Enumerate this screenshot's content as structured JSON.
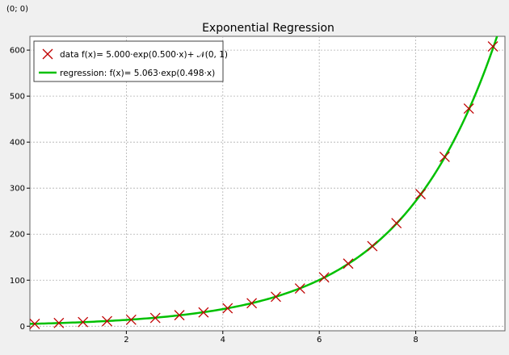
{
  "status": {
    "coordinate_readout": "(0; 0)"
  },
  "colors": {
    "background": "#f0f0f0",
    "plot_background": "#ffffff",
    "data_marker": "#c00000",
    "regression_line": "#00c000",
    "grid": "#b0b0b0"
  },
  "chart_data": {
    "type": "scatter",
    "title": "Exponential Regression",
    "xlabel": "",
    "ylabel": "",
    "xlim": [
      0,
      9.85
    ],
    "ylim": [
      -10,
      630
    ],
    "x_ticks": [
      2,
      4,
      6,
      8
    ],
    "y_ticks": [
      0,
      100,
      200,
      300,
      400,
      500,
      600
    ],
    "grid": true,
    "legend_position": "top-left",
    "series": [
      {
        "name": "data f(x)= 5.000·exp(0.500·x)+ 𝒩(0, 1)",
        "kind": "markers",
        "marker": "x",
        "color": "#c00000",
        "x": [
          0.1,
          0.6,
          1.1,
          1.6,
          2.1,
          2.6,
          3.1,
          3.6,
          4.1,
          4.6,
          5.1,
          5.6,
          6.1,
          6.6,
          7.1,
          7.6,
          8.1,
          8.6,
          9.1,
          9.6
        ],
        "y": [
          5.0,
          7.0,
          9.0,
          11.0,
          14.0,
          18.0,
          24.0,
          30.0,
          39.0,
          50.0,
          64.0,
          82.0,
          106.0,
          136.0,
          174.0,
          224.0,
          287.0,
          368.0,
          473.0,
          608.0
        ]
      },
      {
        "name": "regression: f(x)= 5.063·exp(0.498·x)",
        "kind": "line",
        "color": "#00c000",
        "a": 5.063,
        "b": 0.498
      }
    ]
  }
}
